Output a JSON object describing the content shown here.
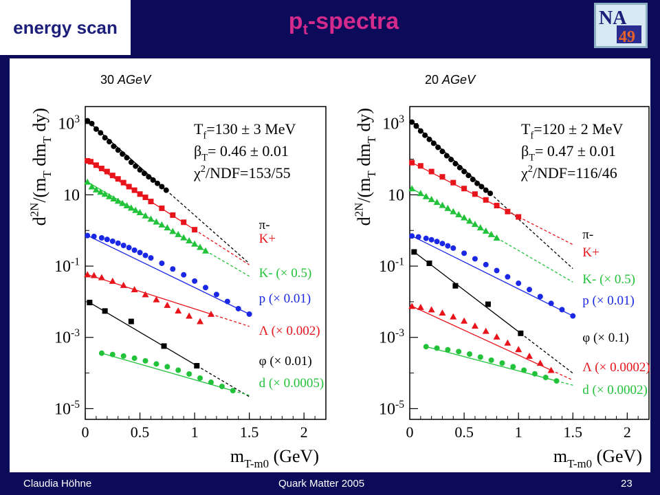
{
  "header": {
    "topic": "energy scan",
    "title_main": "p",
    "title_sub": "t",
    "title_rest": "-spectra",
    "logo_text": "NA 49"
  },
  "energy_labels": [
    {
      "value": "30",
      "unit": "AGeV"
    },
    {
      "value": "20",
      "unit": "AGeV"
    }
  ],
  "footer": {
    "author": "Claudia Höhne",
    "conference": "Quark Matter 2005",
    "page": "23"
  },
  "colors": {
    "black": "#000000",
    "red": "#e8141b",
    "green": "#22c23a",
    "blue": "#1a28e6"
  },
  "chart_data": [
    {
      "type": "scatter",
      "title": "30 AGeV",
      "xlabel": "m_T-m_0 (GeV)",
      "ylabel": "d^2N/(m_T dm_T dy)",
      "log_y": true,
      "xlim": [
        0,
        2.2
      ],
      "ylim": [
        5e-06,
        3000
      ],
      "x_ticks": [
        "0",
        "0.5",
        "1",
        "1.5",
        "2"
      ],
      "y_ticks": [
        "10^3",
        "10",
        "10^-1",
        "10^-3",
        "10^-5"
      ],
      "fit_params": [
        "T_f=130 ± 3 MeV",
        "β_T= 0.46 ± 0.01",
        "χ^2/NDF=153/55"
      ],
      "series": [
        {
          "name": "π-",
          "color": "black",
          "marker": "circle",
          "fit_end": 1.5,
          "x": [
            0.02,
            0.06,
            0.1,
            0.14,
            0.18,
            0.22,
            0.26,
            0.3,
            0.34,
            0.38,
            0.42,
            0.46,
            0.5,
            0.54,
            0.58,
            0.62,
            0.66,
            0.7,
            0.74
          ],
          "y": [
            1200,
            1000,
            700,
            550,
            400,
            310,
            230,
            180,
            140,
            110,
            82,
            64,
            50,
            40,
            32,
            26,
            21,
            17,
            13.5
          ]
        },
        {
          "name": "K+",
          "color": "red",
          "marker": "square",
          "fit_end": 1.5,
          "x": [
            0.02,
            0.05,
            0.1,
            0.15,
            0.2,
            0.25,
            0.3,
            0.35,
            0.4,
            0.45,
            0.5,
            0.55,
            0.6,
            0.7,
            0.8,
            0.9,
            1.0
          ],
          "y": [
            90,
            85,
            68,
            55,
            45,
            35,
            28,
            22,
            17,
            13.5,
            10.5,
            8.5,
            6.5,
            4.2,
            2.7,
            1.7,
            1.05
          ]
        },
        {
          "name": "K- (× 0.5)",
          "color": "green",
          "marker": "triangle",
          "fit_end": 1.5,
          "x": [
            0.02,
            0.06,
            0.1,
            0.14,
            0.18,
            0.22,
            0.26,
            0.3,
            0.34,
            0.38,
            0.42,
            0.46,
            0.5,
            0.55,
            0.6,
            0.65,
            0.7,
            0.75,
            0.8,
            0.85,
            0.9,
            0.95,
            1.0,
            1.05,
            1.1
          ],
          "y": [
            23,
            17,
            14,
            12,
            10.5,
            9,
            7.8,
            6.7,
            5.8,
            5,
            4.3,
            3.7,
            3.2,
            2.6,
            2.1,
            1.75,
            1.45,
            1.2,
            0.95,
            0.78,
            0.63,
            0.52,
            0.42,
            0.34,
            0.27
          ]
        },
        {
          "name": "p (× 0.01)",
          "color": "blue",
          "marker": "circle",
          "fit_end": 1.5,
          "x": [
            0.02,
            0.08,
            0.15,
            0.2,
            0.25,
            0.3,
            0.35,
            0.4,
            0.45,
            0.5,
            0.55,
            0.6,
            0.7,
            0.8,
            0.9,
            1.0,
            1.1,
            1.2,
            1.3,
            1.4,
            1.5
          ],
          "y": [
            0.72,
            0.68,
            0.62,
            0.56,
            0.5,
            0.44,
            0.38,
            0.33,
            0.28,
            0.24,
            0.2,
            0.17,
            0.12,
            0.083,
            0.057,
            0.038,
            0.025,
            0.016,
            0.0102,
            0.0064,
            0.0045
          ]
        },
        {
          "name": "Λ (× 0.002)",
          "color": "red",
          "marker": "triangle",
          "fit_end": 1.5,
          "x": [
            0.02,
            0.08,
            0.15,
            0.25,
            0.35,
            0.45,
            0.55,
            0.65,
            0.75,
            0.85,
            0.95,
            1.05,
            1.15
          ],
          "y": [
            0.058,
            0.055,
            0.048,
            0.038,
            0.029,
            0.022,
            0.016,
            0.0115,
            0.008,
            0.0056,
            0.004,
            0.0028,
            0.0045
          ]
        },
        {
          "name": "φ (× 0.01)",
          "color": "black",
          "marker": "square",
          "fit_end": 1.5,
          "x": [
            0.04,
            0.18,
            0.42,
            0.72,
            1.02
          ],
          "y": [
            0.0095,
            0.0055,
            0.0028,
            0.00057,
            0.00016
          ]
        },
        {
          "name": "d (× 0.0005)",
          "color": "green",
          "marker": "circle",
          "fit_end": 1.5,
          "x": [
            0.15,
            0.25,
            0.35,
            0.45,
            0.55,
            0.65,
            0.75,
            0.85,
            0.95,
            1.05,
            1.15,
            1.25,
            1.35
          ],
          "y": [
            0.00036,
            0.00033,
            0.0003,
            0.00026,
            0.00022,
            0.00018,
            0.00015,
            0.00012,
            9.4e-05,
            7.2e-05,
            5.5e-05,
            4.2e-05,
            3.2e-05
          ]
        }
      ]
    },
    {
      "type": "scatter",
      "title": "20 AGeV",
      "xlabel": "m_T-m_0 (GeV)",
      "ylabel": "d^2N/(m_T dm_T dy)",
      "log_y": true,
      "xlim": [
        0,
        2.2
      ],
      "ylim": [
        5e-06,
        3000
      ],
      "x_ticks": [
        "0",
        "0.5",
        "1",
        "1.5",
        "2"
      ],
      "y_ticks": [
        "10^3",
        "10",
        "10^-1",
        "10^-3",
        "10^-5"
      ],
      "fit_params": [
        "T_f=120 ± 2 MeV",
        "β_T= 0.47 ± 0.01",
        "χ^2/NDF=116/46"
      ],
      "series": [
        {
          "name": "π-",
          "color": "black",
          "marker": "circle",
          "fit_end": 1.5,
          "x": [
            0.02,
            0.06,
            0.1,
            0.14,
            0.18,
            0.22,
            0.26,
            0.3,
            0.34,
            0.38,
            0.42,
            0.46,
            0.5,
            0.54,
            0.58,
            0.62,
            0.66,
            0.7,
            0.74
          ],
          "y": [
            1100,
            850,
            620,
            470,
            360,
            280,
            215,
            165,
            125,
            98,
            75,
            58,
            45,
            35,
            27,
            21,
            17,
            13.5,
            11
          ]
        },
        {
          "name": "K+",
          "color": "red",
          "marker": "square",
          "fit_end": 1.5,
          "x": [
            0.02,
            0.1,
            0.2,
            0.3,
            0.4,
            0.5,
            0.6,
            0.7,
            0.8,
            0.9,
            1.0
          ],
          "y": [
            80,
            65,
            45,
            32,
            22,
            15,
            10.5,
            7.2,
            5,
            3.4,
            2.4
          ]
        },
        {
          "name": "K- (× 0.5)",
          "color": "green",
          "marker": "triangle",
          "fit_end": 1.5,
          "x": [
            0.02,
            0.1,
            0.15,
            0.2,
            0.25,
            0.3,
            0.35,
            0.4,
            0.45,
            0.5,
            0.55,
            0.6,
            0.65,
            0.7,
            0.75,
            0.8
          ],
          "y": [
            15,
            11,
            9,
            7.5,
            6.2,
            5.1,
            4.2,
            3.4,
            2.8,
            2.3,
            1.85,
            1.5,
            1.2,
            0.97,
            0.78,
            0.62
          ]
        },
        {
          "name": "p (× 0.01)",
          "color": "blue",
          "marker": "circle",
          "fit_end": 1.5,
          "x": [
            0.02,
            0.08,
            0.15,
            0.2,
            0.25,
            0.3,
            0.35,
            0.4,
            0.5,
            0.6,
            0.7,
            0.8,
            0.9,
            1.0,
            1.1,
            1.2,
            1.3,
            1.4,
            1.5
          ],
          "y": [
            0.7,
            0.66,
            0.6,
            0.55,
            0.49,
            0.43,
            0.37,
            0.32,
            0.23,
            0.16,
            0.11,
            0.075,
            0.05,
            0.033,
            0.022,
            0.014,
            0.009,
            0.006,
            0.004
          ]
        },
        {
          "name": "φ (× 0.1)",
          "color": "black",
          "marker": "square",
          "fit_end": 1.5,
          "x": [
            0.04,
            0.18,
            0.42,
            0.72,
            1.02
          ],
          "y": [
            0.25,
            0.12,
            0.028,
            0.0085,
            0.0013
          ]
        },
        {
          "name": "Λ (× 0.0002)",
          "color": "red",
          "marker": "triangle",
          "fit_end": 1.5,
          "x": [
            0.02,
            0.1,
            0.2,
            0.3,
            0.4,
            0.5,
            0.6,
            0.7,
            0.8,
            0.9,
            1.0,
            1.1,
            1.2,
            1.3
          ],
          "y": [
            0.0075,
            0.007,
            0.006,
            0.0049,
            0.0038,
            0.0029,
            0.0021,
            0.0015,
            0.00104,
            0.0007,
            0.00046,
            0.0003,
            0.00019,
            0.00012
          ]
        },
        {
          "name": "d (× 0.0002)",
          "color": "green",
          "marker": "circle",
          "fit_end": 1.5,
          "x": [
            0.15,
            0.25,
            0.35,
            0.45,
            0.55,
            0.65,
            0.75,
            0.85,
            0.95,
            1.05,
            1.15,
            1.25,
            1.35
          ],
          "y": [
            0.00055,
            0.0005,
            0.00045,
            0.0004,
            0.00034,
            0.00028,
            0.00023,
            0.00019,
            0.00015,
            0.00012,
            9.5e-05,
            7.5e-05,
            6e-05
          ]
        }
      ]
    }
  ]
}
